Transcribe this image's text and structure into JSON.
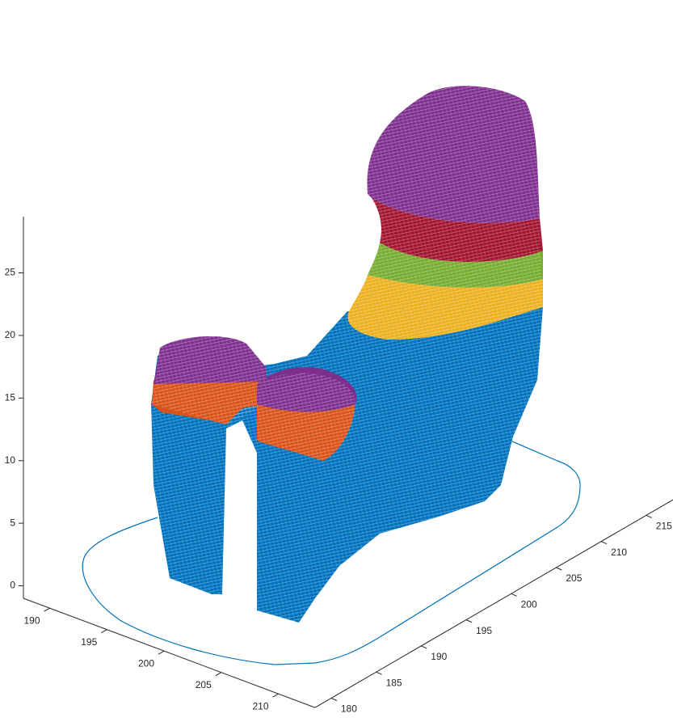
{
  "chart_data": {
    "type": "surface3d",
    "xlim": [
      187.7,
      213.2
    ],
    "xticks": [
      190,
      195,
      200,
      205,
      210
    ],
    "ylim": [
      178.2,
      218
    ],
    "yticks": [
      180,
      185,
      190,
      195,
      200,
      205,
      210,
      215
    ],
    "zlim": [
      -1,
      29.5
    ],
    "zticks": [
      0,
      5,
      10,
      15,
      20,
      25
    ]
  }
}
